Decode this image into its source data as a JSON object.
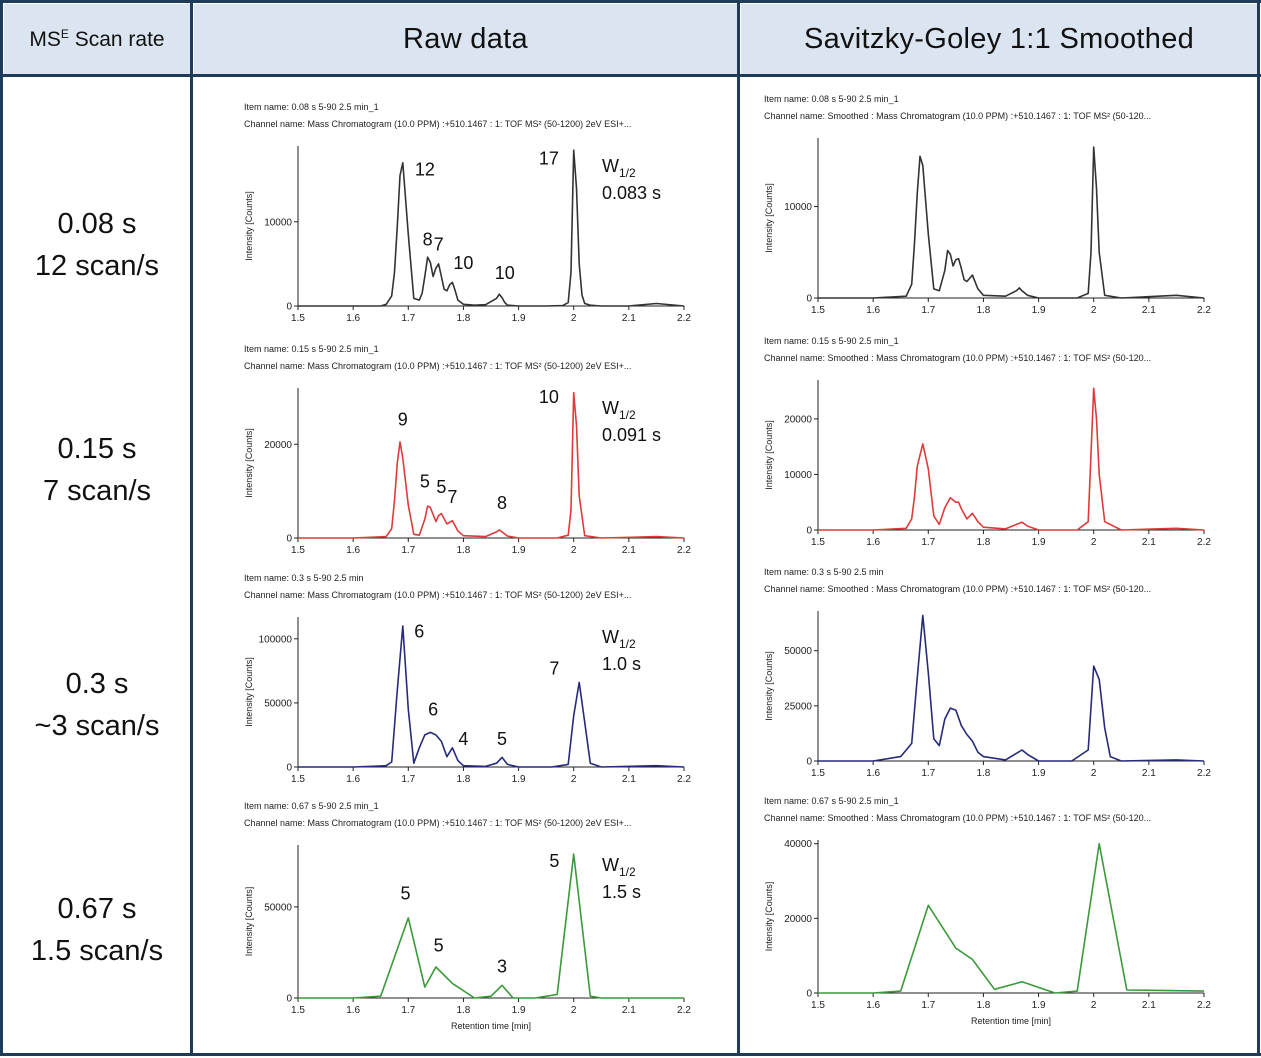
{
  "header": {
    "col_scan_label": "MS",
    "col_scan_sup": "E",
    "col_scan_rest": " Scan rate",
    "col_raw": "Raw data",
    "col_smoothed": "Savitzky-Goley 1:1 Smoothed"
  },
  "rows": [
    {
      "scan_time": "0.08 s",
      "scan_rate": "12 scan/s"
    },
    {
      "scan_time": "0.15 s",
      "scan_rate": "7 scan/s"
    },
    {
      "scan_time": "0.3 s",
      "scan_rate": "~3 scan/s"
    },
    {
      "scan_time": "0.67 s",
      "scan_rate": "1.5 scan/s"
    }
  ],
  "chart_data": [
    {
      "type": "line",
      "panel": "raw",
      "row": 0,
      "color": "#333333",
      "item_name": "Item name: 0.08 s 5-90 2.5 min_1",
      "channel_name": "Channel name: Mass Chromatogram (10.0 PPM) :+510.1467 : 1: TOF MS² (50-1200) 2eV ESI+...",
      "ylabel": "Intensity [Counts]",
      "xlabel": "",
      "xlim": [
        1.5,
        2.2
      ],
      "ylim": [
        0,
        19000
      ],
      "xticks": [
        "1.5",
        "1.6",
        "1.7",
        "1.8",
        "1.9",
        "2",
        "2.1",
        "2.2"
      ],
      "yticks": [
        {
          "v": 0,
          "label": "0"
        },
        {
          "v": 10000,
          "label": "10000"
        }
      ],
      "x": [
        1.5,
        1.55,
        1.6,
        1.65,
        1.66,
        1.67,
        1.675,
        1.68,
        1.685,
        1.69,
        1.7,
        1.71,
        1.72,
        1.725,
        1.73,
        1.735,
        1.74,
        1.745,
        1.75,
        1.755,
        1.76,
        1.765,
        1.77,
        1.775,
        1.78,
        1.785,
        1.79,
        1.8,
        1.82,
        1.84,
        1.86,
        1.865,
        1.87,
        1.875,
        1.88,
        1.9,
        1.95,
        1.98,
        1.99,
        1.995,
        2,
        2.005,
        2.01,
        2.015,
        2.02,
        2.03,
        2.05,
        2.1,
        2.15,
        2.2
      ],
      "y": [
        0,
        0,
        0,
        0,
        200,
        1200,
        4000,
        9500,
        15500,
        17000,
        8500,
        900,
        700,
        1500,
        3500,
        5800,
        5200,
        3500,
        4500,
        5000,
        3500,
        2000,
        1800,
        2500,
        2800,
        1800,
        700,
        200,
        100,
        150,
        900,
        1400,
        1000,
        400,
        100,
        0,
        0,
        50,
        400,
        4000,
        18500,
        14000,
        5000,
        1300,
        300,
        100,
        0,
        0,
        300,
        0
      ],
      "annotations": [
        {
          "text": "12",
          "x": 1.73,
          "y": 15500
        },
        {
          "text": "8",
          "x": 1.735,
          "y": 7200
        },
        {
          "text": "7",
          "x": 1.755,
          "y": 6600
        },
        {
          "text": "10",
          "x": 1.8,
          "y": 4400
        },
        {
          "text": "10",
          "x": 1.875,
          "y": 3200
        },
        {
          "text": "17",
          "x": 1.955,
          "y": 16800
        }
      ],
      "width_label": "W",
      "width_sub": "1/2",
      "width_value": "0.083 s"
    },
    {
      "type": "line",
      "panel": "smoothed",
      "row": 0,
      "color": "#333333",
      "item_name": "Item name: 0.08 s 5-90 2.5 min_1",
      "channel_name": "Channel name: Smoothed : Mass Chromatogram (10.0 PPM) :+510.1467 : 1: TOF MS² (50-120...",
      "ylabel": "Intensity [Counts]",
      "xlabel": "",
      "xlim": [
        1.5,
        2.2
      ],
      "ylim": [
        0,
        17500
      ],
      "xticks": [
        "1.5",
        "1.6",
        "1.7",
        "1.8",
        "1.9",
        "2",
        "2.1",
        "2.2"
      ],
      "yticks": [
        {
          "v": 0,
          "label": "0"
        },
        {
          "v": 10000,
          "label": "10000"
        }
      ],
      "x": [
        1.5,
        1.6,
        1.66,
        1.67,
        1.675,
        1.68,
        1.685,
        1.69,
        1.7,
        1.71,
        1.72,
        1.73,
        1.735,
        1.74,
        1.745,
        1.75,
        1.755,
        1.76,
        1.765,
        1.77,
        1.78,
        1.79,
        1.8,
        1.84,
        1.86,
        1.865,
        1.87,
        1.88,
        1.9,
        1.97,
        1.99,
        1.995,
        2,
        2.005,
        2.01,
        2.02,
        2.05,
        2.15,
        2.2
      ],
      "y": [
        0,
        0,
        200,
        1500,
        6000,
        11500,
        15500,
        14500,
        7000,
        1000,
        800,
        3000,
        5200,
        4800,
        3500,
        4200,
        4300,
        3200,
        2000,
        1800,
        2500,
        1000,
        300,
        200,
        800,
        1100,
        800,
        300,
        0,
        0,
        500,
        5000,
        16500,
        12000,
        5000,
        300,
        0,
        300,
        0
      ],
      "annotations": [],
      "width_label": "",
      "width_sub": "",
      "width_value": ""
    },
    {
      "type": "line",
      "panel": "raw",
      "row": 1,
      "color": "#dd3b3b",
      "item_name": "Item name: 0.15 s 5-90 2.5 min_1",
      "channel_name": "Channel name: Mass Chromatogram (10.0 PPM) :+510.1467 : 1: TOF MS² (50-1200) 2eV ESI+...",
      "ylabel": "Intensity [Counts]",
      "xlabel": "",
      "xlim": [
        1.5,
        2.2
      ],
      "ylim": [
        0,
        32000
      ],
      "xticks": [
        "1.5",
        "1.6",
        "1.7",
        "1.8",
        "1.9",
        "2",
        "2.1",
        "2.2"
      ],
      "yticks": [
        {
          "v": 0,
          "label": "0"
        },
        {
          "v": 20000,
          "label": "20000"
        }
      ],
      "x": [
        1.5,
        1.6,
        1.66,
        1.67,
        1.675,
        1.68,
        1.685,
        1.69,
        1.7,
        1.71,
        1.72,
        1.73,
        1.735,
        1.74,
        1.75,
        1.755,
        1.76,
        1.77,
        1.78,
        1.79,
        1.8,
        1.84,
        1.86,
        1.865,
        1.87,
        1.88,
        1.9,
        1.97,
        1.99,
        1.995,
        2,
        2.005,
        2.01,
        2.02,
        2.05,
        2.15,
        2.2
      ],
      "y": [
        0,
        0,
        300,
        2000,
        8000,
        16000,
        20500,
        17000,
        7000,
        800,
        600,
        4000,
        6800,
        6500,
        3500,
        4800,
        5200,
        3000,
        3700,
        1500,
        500,
        300,
        1300,
        1700,
        1300,
        400,
        0,
        0,
        600,
        6000,
        31000,
        24000,
        9000,
        500,
        0,
        300,
        0
      ],
      "annotations": [
        {
          "text": "9",
          "x": 1.69,
          "y": 24000
        },
        {
          "text": "5",
          "x": 1.73,
          "y": 10800
        },
        {
          "text": "5",
          "x": 1.76,
          "y": 9600
        },
        {
          "text": "7",
          "x": 1.78,
          "y": 7500
        },
        {
          "text": "8",
          "x": 1.87,
          "y": 6200
        },
        {
          "text": "10",
          "x": 1.955,
          "y": 28800
        }
      ],
      "width_label": "W",
      "width_sub": "1/2",
      "width_value": "0.091 s"
    },
    {
      "type": "line",
      "panel": "smoothed",
      "row": 1,
      "color": "#dd3b3b",
      "item_name": "Item name: 0.15 s 5-90 2.5 min_1",
      "channel_name": "Channel name: Smoothed : Mass Chromatogram (10.0 PPM) :+510.1467 : 1: TOF MS² (50-120...",
      "ylabel": "Intensity [Counts]",
      "xlabel": "",
      "xlim": [
        1.5,
        2.2
      ],
      "ylim": [
        0,
        27000
      ],
      "xticks": [
        "1.5",
        "1.6",
        "1.7",
        "1.8",
        "1.9",
        "2",
        "2.1",
        "2.2"
      ],
      "yticks": [
        {
          "v": 0,
          "label": "0"
        },
        {
          "v": 10000,
          "label": "10000"
        },
        {
          "v": 20000,
          "label": "20000"
        }
      ],
      "x": [
        1.5,
        1.6,
        1.66,
        1.67,
        1.675,
        1.68,
        1.69,
        1.7,
        1.71,
        1.72,
        1.73,
        1.74,
        1.75,
        1.755,
        1.76,
        1.77,
        1.78,
        1.79,
        1.8,
        1.84,
        1.86,
        1.87,
        1.88,
        1.9,
        1.97,
        1.99,
        2,
        2.005,
        2.01,
        2.02,
        2.05,
        2.15,
        2.2
      ],
      "y": [
        0,
        0,
        300,
        2000,
        6000,
        11500,
        15500,
        11000,
        2500,
        1000,
        4000,
        5800,
        5000,
        5000,
        3800,
        2000,
        3000,
        1500,
        500,
        200,
        1000,
        1400,
        700,
        0,
        0,
        1500,
        25500,
        20000,
        10000,
        1500,
        0,
        300,
        0
      ],
      "annotations": [],
      "width_label": "",
      "width_sub": "",
      "width_value": ""
    },
    {
      "type": "line",
      "panel": "raw",
      "row": 2,
      "color": "#262a7a",
      "item_name": "Item name: 0.3 s 5-90 2.5 min",
      "channel_name": "Channel name: Mass Chromatogram (10.0 PPM) :+510.1467 : 1: TOF MS² (50-1200) 2eV ESI+...",
      "ylabel": "Intensity [Counts]",
      "xlabel": "",
      "xlim": [
        1.5,
        2.2
      ],
      "ylim": [
        0,
        117000
      ],
      "xticks": [
        "1.5",
        "1.6",
        "1.7",
        "1.8",
        "1.9",
        "2",
        "2.1",
        "2.2"
      ],
      "yticks": [
        {
          "v": 0,
          "label": "0"
        },
        {
          "v": 50000,
          "label": "50000"
        },
        {
          "v": 100000,
          "label": "100000"
        }
      ],
      "x": [
        1.5,
        1.6,
        1.66,
        1.67,
        1.68,
        1.69,
        1.7,
        1.71,
        1.72,
        1.73,
        1.74,
        1.75,
        1.76,
        1.77,
        1.78,
        1.79,
        1.8,
        1.84,
        1.86,
        1.87,
        1.88,
        1.9,
        1.96,
        1.99,
        2,
        2.01,
        2.02,
        2.03,
        2.05,
        2.15,
        2.2
      ],
      "y": [
        0,
        0,
        1000,
        4000,
        60000,
        110000,
        45000,
        3000,
        15000,
        25000,
        27000,
        25000,
        20000,
        8000,
        15000,
        5000,
        1000,
        500,
        3000,
        7500,
        2000,
        0,
        0,
        2000,
        40000,
        66000,
        35000,
        3000,
        0,
        1000,
        0
      ],
      "annotations": [
        {
          "text": "6",
          "x": 1.72,
          "y": 101000
        },
        {
          "text": "6",
          "x": 1.745,
          "y": 40000
        },
        {
          "text": "4",
          "x": 1.8,
          "y": 17000
        },
        {
          "text": "5",
          "x": 1.87,
          "y": 17000
        },
        {
          "text": "7",
          "x": 1.965,
          "y": 72000
        }
      ],
      "width_label": "W",
      "width_sub": "1/2",
      "width_value": "1.0 s"
    },
    {
      "type": "line",
      "panel": "smoothed",
      "row": 2,
      "color": "#262a7a",
      "item_name": "Item name: 0.3 s 5-90 2.5 min",
      "channel_name": "Channel name: Smoothed : Mass Chromatogram (10.0 PPM) :+510.1467 : 1: TOF MS² (50-120...",
      "ylabel": "Intensity [Counts]",
      "xlabel": "",
      "xlim": [
        1.5,
        2.2
      ],
      "ylim": [
        0,
        68000
      ],
      "xticks": [
        "1.5",
        "1.6",
        "1.7",
        "1.8",
        "1.9",
        "2",
        "2.1",
        "2.2"
      ],
      "yticks": [
        {
          "v": 0,
          "label": "0"
        },
        {
          "v": 25000,
          "label": "25000"
        },
        {
          "v": 50000,
          "label": "50000"
        }
      ],
      "x": [
        1.5,
        1.6,
        1.65,
        1.67,
        1.68,
        1.69,
        1.7,
        1.71,
        1.72,
        1.73,
        1.74,
        1.75,
        1.76,
        1.77,
        1.78,
        1.79,
        1.8,
        1.84,
        1.86,
        1.87,
        1.88,
        1.9,
        1.96,
        1.99,
        2,
        2.01,
        2.02,
        2.03,
        2.05,
        2.15,
        2.2
      ],
      "y": [
        0,
        0,
        2000,
        8000,
        38000,
        66000,
        40000,
        10000,
        7000,
        19000,
        24000,
        23000,
        16000,
        12000,
        9000,
        4000,
        2000,
        500,
        3500,
        5000,
        3000,
        0,
        0,
        5000,
        43000,
        37000,
        15000,
        2000,
        0,
        500,
        0
      ],
      "annotations": [],
      "width_label": "",
      "width_sub": "",
      "width_value": ""
    },
    {
      "type": "line",
      "panel": "raw",
      "row": 3,
      "color": "#3a9a3a",
      "item_name": "Item name: 0.67 s 5-90 2.5 min_1",
      "channel_name": "Channel name: Mass Chromatogram (10.0 PPM) :+510.1467 : 1: TOF MS² (50-1200) 2eV ESI+...",
      "ylabel": "Intensity [Counts]",
      "xlabel": "Retention time [min]",
      "xlim": [
        1.5,
        2.2
      ],
      "ylim": [
        0,
        84000
      ],
      "xticks": [
        "1.5",
        "1.6",
        "1.7",
        "1.8",
        "1.9",
        "2",
        "2.1",
        "2.2"
      ],
      "yticks": [
        {
          "v": 0,
          "label": "0"
        },
        {
          "v": 50000,
          "label": "50000"
        }
      ],
      "x": [
        1.5,
        1.6,
        1.65,
        1.7,
        1.73,
        1.75,
        1.78,
        1.82,
        1.85,
        1.87,
        1.89,
        1.93,
        1.97,
        2,
        2.03,
        2.05,
        2.2
      ],
      "y": [
        0,
        0,
        1000,
        44000,
        6000,
        17000,
        8000,
        0,
        1000,
        7000,
        0,
        0,
        2000,
        79000,
        1000,
        0,
        0
      ],
      "annotations": [
        {
          "text": "5",
          "x": 1.695,
          "y": 54000
        },
        {
          "text": "5",
          "x": 1.755,
          "y": 25500
        },
        {
          "text": "3",
          "x": 1.87,
          "y": 14000
        },
        {
          "text": "5",
          "x": 1.965,
          "y": 72000
        }
      ],
      "width_label": "W",
      "width_sub": "1/2",
      "width_value": "1.5 s"
    },
    {
      "type": "line",
      "panel": "smoothed",
      "row": 3,
      "color": "#3a9a3a",
      "item_name": "Item name: 0.67 s 5-90 2.5 min_1",
      "channel_name": "Channel name: Smoothed : Mass Chromatogram (10.0 PPM) :+510.1467 : 1: TOF MS² (50-120...",
      "ylabel": "Intensity [Counts]",
      "xlabel": "Retention time [min]",
      "xlim": [
        1.5,
        2.2
      ],
      "ylim": [
        0,
        41000
      ],
      "xticks": [
        "1.5",
        "1.6",
        "1.7",
        "1.8",
        "1.9",
        "2",
        "2.1",
        "2.2"
      ],
      "yticks": [
        {
          "v": 0,
          "label": "0"
        },
        {
          "v": 20000,
          "label": "20000"
        },
        {
          "v": 40000,
          "label": "40000"
        }
      ],
      "x": [
        1.5,
        1.6,
        1.65,
        1.7,
        1.75,
        1.78,
        1.82,
        1.87,
        1.93,
        1.97,
        2.01,
        2.06,
        2.2
      ],
      "y": [
        0,
        0,
        500,
        23500,
        12000,
        9000,
        1000,
        3000,
        0,
        500,
        40000,
        800,
        500
      ],
      "annotations": [],
      "width_label": "",
      "width_sub": "",
      "width_value": ""
    }
  ]
}
